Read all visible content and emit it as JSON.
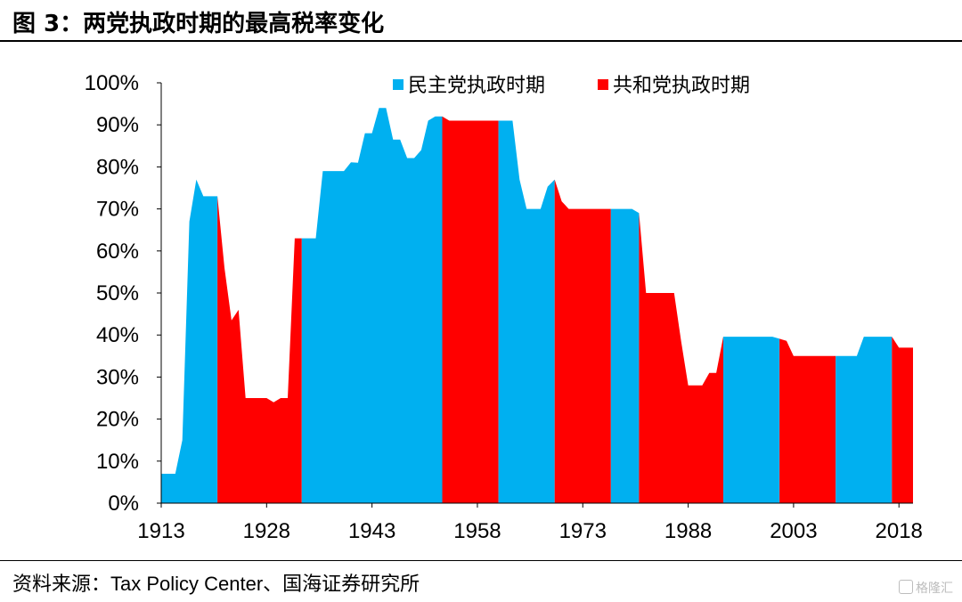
{
  "title": "图 3：两党执政时期的最高税率变化",
  "source": "资料来源：Tax Policy Center、国海证券研究所",
  "watermark": "格隆汇",
  "colors": {
    "democratic": "#00B0F0",
    "republican": "#FF0000"
  },
  "chart_data": {
    "type": "area",
    "title": "",
    "xlabel": "",
    "ylabel": "",
    "ylim": [
      0,
      1
    ],
    "xlim": [
      1913,
      2020
    ],
    "y_ticks": [
      "0%",
      "10%",
      "20%",
      "30%",
      "40%",
      "50%",
      "60%",
      "70%",
      "80%",
      "90%",
      "100%"
    ],
    "x_ticks": [
      1913,
      1928,
      1943,
      1958,
      1973,
      1988,
      2003,
      2018
    ],
    "legend": {
      "placement": "top-right",
      "entries": [
        "民主党执政时期",
        "共和党执政时期"
      ]
    },
    "grid": false,
    "series": [
      {
        "name": "最高税率",
        "x": [
          1913,
          1915,
          1916,
          1917,
          1918,
          1919,
          1920,
          1921,
          1922,
          1923,
          1924,
          1925,
          1926,
          1927,
          1928,
          1929,
          1930,
          1931,
          1932,
          1933,
          1934,
          1935,
          1936,
          1937,
          1938,
          1939,
          1940,
          1941,
          1942,
          1943,
          1944,
          1945,
          1946,
          1947,
          1948,
          1949,
          1950,
          1951,
          1952,
          1953,
          1954,
          1955,
          1956,
          1957,
          1958,
          1959,
          1960,
          1961,
          1962,
          1963,
          1964,
          1965,
          1966,
          1967,
          1968,
          1969,
          1970,
          1971,
          1972,
          1973,
          1974,
          1975,
          1976,
          1977,
          1978,
          1979,
          1980,
          1981,
          1982,
          1983,
          1984,
          1985,
          1986,
          1987,
          1988,
          1989,
          1990,
          1991,
          1992,
          1993,
          1994,
          1995,
          1996,
          1997,
          1998,
          1999,
          2000,
          2001,
          2002,
          2003,
          2004,
          2005,
          2006,
          2007,
          2008,
          2009,
          2010,
          2011,
          2012,
          2013,
          2014,
          2015,
          2016,
          2017,
          2018,
          2019,
          2020
        ],
        "y": [
          0.07,
          0.07,
          0.15,
          0.67,
          0.77,
          0.73,
          0.73,
          0.73,
          0.56,
          0.435,
          0.46,
          0.25,
          0.25,
          0.25,
          0.25,
          0.24,
          0.25,
          0.25,
          0.63,
          0.63,
          0.63,
          0.63,
          0.79,
          0.79,
          0.79,
          0.79,
          0.811,
          0.81,
          0.88,
          0.88,
          0.94,
          0.94,
          0.865,
          0.865,
          0.821,
          0.821,
          0.84,
          0.91,
          0.92,
          0.92,
          0.91,
          0.91,
          0.91,
          0.91,
          0.91,
          0.91,
          0.91,
          0.91,
          0.91,
          0.91,
          0.77,
          0.7,
          0.7,
          0.7,
          0.753,
          0.77,
          0.718,
          0.7,
          0.7,
          0.7,
          0.7,
          0.7,
          0.7,
          0.7,
          0.7,
          0.7,
          0.7,
          0.69,
          0.5,
          0.5,
          0.5,
          0.5,
          0.5,
          0.385,
          0.28,
          0.28,
          0.28,
          0.31,
          0.31,
          0.396,
          0.396,
          0.396,
          0.396,
          0.396,
          0.396,
          0.396,
          0.396,
          0.391,
          0.386,
          0.35,
          0.35,
          0.35,
          0.35,
          0.35,
          0.35,
          0.35,
          0.35,
          0.35,
          0.35,
          0.396,
          0.396,
          0.396,
          0.396,
          0.396,
          0.37,
          0.37,
          0.37
        ]
      }
    ],
    "periods": [
      {
        "party": "民主党执政时期",
        "start": 1913,
        "end": 1921
      },
      {
        "party": "共和党执政时期",
        "start": 1921,
        "end": 1933
      },
      {
        "party": "民主党执政时期",
        "start": 1933,
        "end": 1953
      },
      {
        "party": "共和党执政时期",
        "start": 1953,
        "end": 1961
      },
      {
        "party": "民主党执政时期",
        "start": 1961,
        "end": 1969
      },
      {
        "party": "共和党执政时期",
        "start": 1969,
        "end": 1977
      },
      {
        "party": "民主党执政时期",
        "start": 1977,
        "end": 1981
      },
      {
        "party": "共和党执政时期",
        "start": 1981,
        "end": 1993
      },
      {
        "party": "民主党执政时期",
        "start": 1993,
        "end": 2001
      },
      {
        "party": "共和党执政时期",
        "start": 2001,
        "end": 2009
      },
      {
        "party": "民主党执政时期",
        "start": 2009,
        "end": 2017
      },
      {
        "party": "共和党执政时期",
        "start": 2017,
        "end": 2020
      }
    ]
  }
}
